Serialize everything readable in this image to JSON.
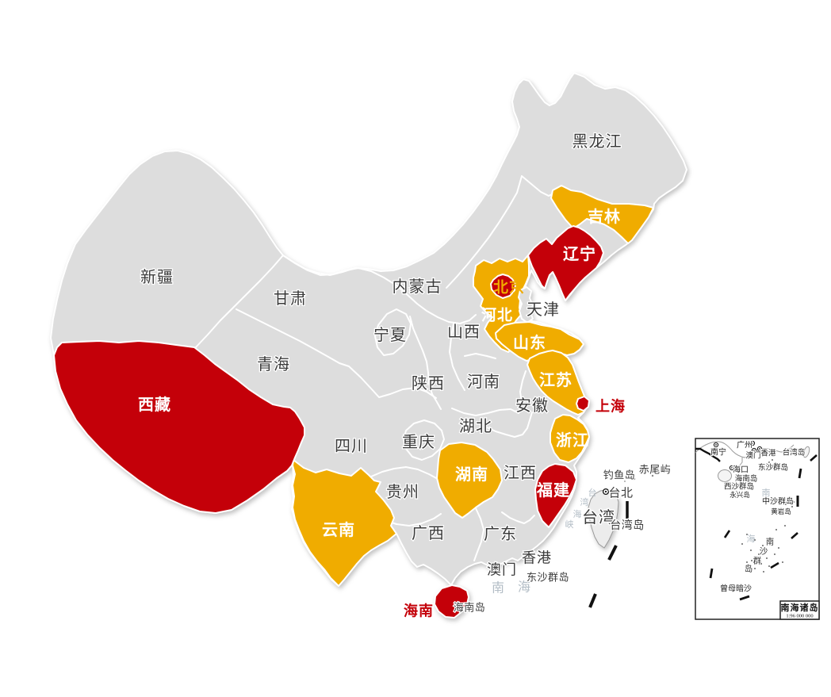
{
  "map": {
    "colors": {
      "background": "#FFFFFF",
      "default_fill": "#DDDDDD",
      "highlight_orange": "#F0AC00",
      "highlight_red": "#C40009",
      "border": "#FFFFFF",
      "label_dark": "#3B3B3B",
      "label_white": "#FFFFFF",
      "label_red": "#C40009",
      "label_gold": "#F0AC00",
      "sea_label": "#B3BDC6",
      "taiwan_fill": "#ECECEC",
      "taiwan_stroke": "#999999",
      "dash": "#111111"
    },
    "provinces": [
      {
        "id": "heilongjiang",
        "name": "黑龙江",
        "status": "default"
      },
      {
        "id": "xinjiang",
        "name": "新疆",
        "status": "default"
      },
      {
        "id": "neimenggu",
        "name": "内蒙古",
        "status": "default"
      },
      {
        "id": "gansu",
        "name": "甘肃",
        "status": "default"
      },
      {
        "id": "ningxia",
        "name": "宁夏",
        "status": "default"
      },
      {
        "id": "qinghai",
        "name": "青海",
        "status": "default"
      },
      {
        "id": "shanxi",
        "name": "山西",
        "status": "default"
      },
      {
        "id": "shaanxi",
        "name": "陕西",
        "status": "default"
      },
      {
        "id": "henan",
        "name": "河南",
        "status": "default"
      },
      {
        "id": "anhui",
        "name": "安徽",
        "status": "default"
      },
      {
        "id": "sichuan",
        "name": "四川",
        "status": "default"
      },
      {
        "id": "chongqing",
        "name": "重庆",
        "status": "default"
      },
      {
        "id": "hubei",
        "name": "湖北",
        "status": "default"
      },
      {
        "id": "jiangxi",
        "name": "江西",
        "status": "default"
      },
      {
        "id": "guizhou",
        "name": "贵州",
        "status": "default"
      },
      {
        "id": "guangxi",
        "name": "广西",
        "status": "default"
      },
      {
        "id": "guangdong",
        "name": "广东",
        "status": "default"
      },
      {
        "id": "tianjin",
        "name": "天津",
        "status": "default"
      },
      {
        "id": "xianggang",
        "name": "香港",
        "status": "default"
      },
      {
        "id": "aomen",
        "name": "澳门",
        "status": "default"
      },
      {
        "id": "taiwan",
        "name": "台湾",
        "status": "default"
      },
      {
        "id": "jilin",
        "name": "吉林",
        "status": "orange"
      },
      {
        "id": "hebei",
        "name": "河北",
        "status": "orange"
      },
      {
        "id": "shandong",
        "name": "山东",
        "status": "orange"
      },
      {
        "id": "jiangsu",
        "name": "江苏",
        "status": "orange"
      },
      {
        "id": "zhejiang",
        "name": "浙江",
        "status": "orange"
      },
      {
        "id": "hunan",
        "name": "湖南",
        "status": "orange"
      },
      {
        "id": "yunnan",
        "name": "云南",
        "status": "orange"
      },
      {
        "id": "liaoning",
        "name": "辽宁",
        "status": "red"
      },
      {
        "id": "beijing",
        "name": "北京",
        "status": "red",
        "label_color": "gold"
      },
      {
        "id": "xizang",
        "name": "西藏",
        "status": "red"
      },
      {
        "id": "shanghai",
        "name": "上海",
        "status": "red",
        "label_color": "red"
      },
      {
        "id": "fujian",
        "name": "福建",
        "status": "red"
      },
      {
        "id": "hainan",
        "name": "海南",
        "status": "red",
        "label_color": "red"
      }
    ],
    "place_labels": [
      {
        "id": "taibei",
        "text": "台北"
      },
      {
        "id": "taiwandao",
        "text": "台湾岛"
      },
      {
        "id": "diaoyudao",
        "text": "钓鱼岛"
      },
      {
        "id": "chiweiyu",
        "text": "赤尾屿"
      },
      {
        "id": "hainandao",
        "text": "海南岛"
      },
      {
        "id": "dongshaqundao",
        "text": "东沙群岛"
      }
    ],
    "sea_labels": [
      {
        "id": "scs-nan",
        "text": "南"
      },
      {
        "id": "scs-hai",
        "text": "海"
      },
      {
        "id": "strait-1",
        "text": "台"
      },
      {
        "id": "strait-2",
        "text": "湾"
      },
      {
        "id": "strait-3",
        "text": "海"
      },
      {
        "id": "strait-4",
        "text": "峡"
      }
    ]
  },
  "inset": {
    "box_title": "南海诸岛",
    "scale": "1:96 000 000",
    "labels": [
      {
        "id": "nanning",
        "text": "南宁"
      },
      {
        "id": "guangzhou",
        "text": "广州"
      },
      {
        "id": "aomen-i",
        "text": "澳门"
      },
      {
        "id": "xianggang-i",
        "text": "香港"
      },
      {
        "id": "taiwandao-i",
        "text": "台湾岛"
      },
      {
        "id": "haikou",
        "text": "海口"
      },
      {
        "id": "dongsha-i",
        "text": "东沙群岛"
      },
      {
        "id": "hainandao-i",
        "text": "海南岛"
      },
      {
        "id": "xisha",
        "text": "西沙群岛"
      },
      {
        "id": "yongxingdao",
        "text": "永兴岛"
      },
      {
        "id": "zhongsha",
        "text": "中沙群岛"
      },
      {
        "id": "huangyandao",
        "text": "黄岩岛"
      },
      {
        "id": "zengmuansha",
        "text": "曾母暗沙"
      }
    ],
    "sea_chars": [
      {
        "id": "inset-nan",
        "text": "南"
      },
      {
        "id": "inset-hai",
        "text": "海"
      }
    ],
    "nansha_vertical": [
      {
        "id": "ns-1",
        "text": "南"
      },
      {
        "id": "ns-2",
        "text": "沙"
      },
      {
        "id": "ns-3",
        "text": "群"
      },
      {
        "id": "ns-4",
        "text": "岛"
      }
    ]
  }
}
